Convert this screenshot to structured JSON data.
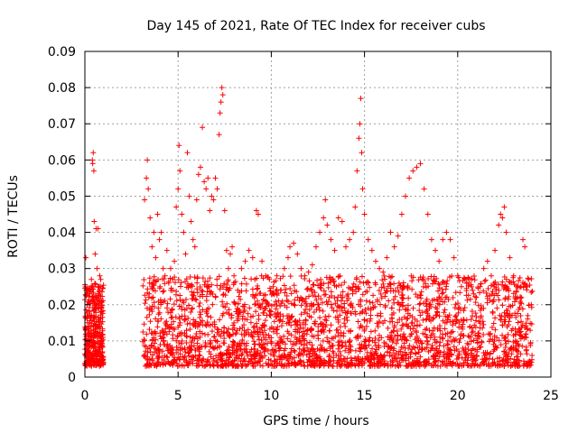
{
  "colors": {
    "series": "#ff0000",
    "grid": "#a0a0a0",
    "frame": "#000000",
    "background": "#ffffff"
  },
  "chart_data": {
    "type": "scatter",
    "title": "Day 145 of 2021, Rate Of TEC Index for receiver cubs",
    "xlabel": "GPS time / hours",
    "ylabel": "ROTI / TECUs",
    "xlim": [
      0,
      25
    ],
    "ylim": [
      0,
      0.09
    ],
    "xticks": [
      0,
      5,
      10,
      15,
      20,
      25
    ],
    "xtick_labels": [
      "0",
      "5",
      "10",
      "15",
      "20",
      "25"
    ],
    "yticks": [
      0,
      0.01,
      0.02,
      0.03,
      0.04,
      0.05,
      0.06,
      0.07,
      0.08,
      0.09
    ],
    "ytick_labels": [
      "0",
      "0.01",
      "0.02",
      "0.03",
      "0.04",
      "0.05",
      "0.06",
      "0.07",
      "0.08",
      "0.09"
    ],
    "grid": true,
    "marker": "plus",
    "series": [
      {
        "color": "#ff0000",
        "points": [
          [
            0.05,
            0.033
          ],
          [
            0.1,
            0.024
          ],
          [
            0.15,
            0.012
          ],
          [
            0.2,
            0.008
          ],
          [
            0.25,
            0.015
          ],
          [
            0.3,
            0.021
          ],
          [
            0.35,
            0.027
          ],
          [
            0.4,
            0.06
          ],
          [
            0.42,
            0.059
          ],
          [
            0.45,
            0.062
          ],
          [
            0.48,
            0.057
          ],
          [
            0.5,
            0.043
          ],
          [
            0.55,
            0.034
          ],
          [
            0.6,
            0.041
          ],
          [
            0.65,
            0.03
          ],
          [
            0.7,
            0.041
          ],
          [
            0.75,
            0.025
          ],
          [
            0.8,
            0.028
          ],
          [
            0.85,
            0.027
          ],
          [
            0.9,
            0.018
          ],
          [
            0.2,
            0.006
          ],
          [
            0.4,
            0.005
          ],
          [
            0.6,
            0.007
          ],
          [
            0.8,
            0.009
          ],
          [
            3.2,
            0.049
          ],
          [
            3.3,
            0.055
          ],
          [
            3.35,
            0.06
          ],
          [
            3.4,
            0.052
          ],
          [
            3.5,
            0.044
          ],
          [
            3.6,
            0.036
          ],
          [
            3.7,
            0.04
          ],
          [
            3.8,
            0.033
          ],
          [
            3.9,
            0.045
          ],
          [
            4.0,
            0.038
          ],
          [
            4.1,
            0.04
          ],
          [
            4.2,
            0.03
          ],
          [
            4.3,
            0.028
          ],
          [
            4.4,
            0.035
          ],
          [
            4.5,
            0.026
          ],
          [
            4.6,
            0.03
          ],
          [
            4.7,
            0.024
          ],
          [
            4.8,
            0.032
          ],
          [
            4.9,
            0.047
          ],
          [
            5.0,
            0.052
          ],
          [
            5.05,
            0.064
          ],
          [
            5.1,
            0.057
          ],
          [
            5.2,
            0.045
          ],
          [
            5.3,
            0.04
          ],
          [
            5.4,
            0.034
          ],
          [
            5.5,
            0.062
          ],
          [
            5.6,
            0.05
          ],
          [
            5.7,
            0.043
          ],
          [
            5.8,
            0.038
          ],
          [
            5.9,
            0.036
          ],
          [
            6.0,
            0.049
          ],
          [
            6.1,
            0.056
          ],
          [
            6.2,
            0.058
          ],
          [
            6.3,
            0.069
          ],
          [
            6.4,
            0.054
          ],
          [
            6.5,
            0.052
          ],
          [
            6.6,
            0.055
          ],
          [
            6.7,
            0.046
          ],
          [
            6.8,
            0.05
          ],
          [
            6.9,
            0.049
          ],
          [
            7.0,
            0.055
          ],
          [
            7.1,
            0.052
          ],
          [
            7.2,
            0.067
          ],
          [
            7.25,
            0.073
          ],
          [
            7.3,
            0.076
          ],
          [
            7.35,
            0.08
          ],
          [
            7.4,
            0.078
          ],
          [
            7.5,
            0.046
          ],
          [
            7.6,
            0.035
          ],
          [
            7.7,
            0.03
          ],
          [
            7.8,
            0.034
          ],
          [
            7.9,
            0.036
          ],
          [
            8.0,
            0.028
          ],
          [
            8.2,
            0.024
          ],
          [
            8.4,
            0.03
          ],
          [
            8.6,
            0.032
          ],
          [
            8.8,
            0.035
          ],
          [
            9.0,
            0.033
          ],
          [
            9.2,
            0.046
          ],
          [
            9.3,
            0.045
          ],
          [
            9.5,
            0.032
          ],
          [
            9.7,
            0.028
          ],
          [
            9.9,
            0.027
          ],
          [
            10.1,
            0.025
          ],
          [
            10.3,
            0.028
          ],
          [
            10.5,
            0.024
          ],
          [
            10.7,
            0.03
          ],
          [
            10.9,
            0.033
          ],
          [
            11.0,
            0.036
          ],
          [
            11.2,
            0.037
          ],
          [
            11.4,
            0.034
          ],
          [
            11.6,
            0.03
          ],
          [
            11.8,
            0.028
          ],
          [
            12.0,
            0.029
          ],
          [
            12.2,
            0.031
          ],
          [
            12.4,
            0.036
          ],
          [
            12.6,
            0.04
          ],
          [
            12.8,
            0.044
          ],
          [
            12.9,
            0.049
          ],
          [
            13.0,
            0.042
          ],
          [
            13.2,
            0.038
          ],
          [
            13.4,
            0.035
          ],
          [
            13.6,
            0.044
          ],
          [
            13.8,
            0.043
          ],
          [
            14.0,
            0.036
          ],
          [
            14.2,
            0.038
          ],
          [
            14.4,
            0.04
          ],
          [
            14.5,
            0.047
          ],
          [
            14.6,
            0.057
          ],
          [
            14.7,
            0.066
          ],
          [
            14.75,
            0.07
          ],
          [
            14.8,
            0.077
          ],
          [
            14.85,
            0.062
          ],
          [
            14.9,
            0.052
          ],
          [
            15.0,
            0.045
          ],
          [
            15.2,
            0.038
          ],
          [
            15.4,
            0.035
          ],
          [
            15.6,
            0.032
          ],
          [
            15.8,
            0.03
          ],
          [
            16.0,
            0.029
          ],
          [
            16.2,
            0.033
          ],
          [
            16.4,
            0.04
          ],
          [
            16.6,
            0.036
          ],
          [
            16.8,
            0.039
          ],
          [
            17.0,
            0.045
          ],
          [
            17.2,
            0.05
          ],
          [
            17.4,
            0.055
          ],
          [
            17.6,
            0.057
          ],
          [
            17.8,
            0.058
          ],
          [
            18.0,
            0.059
          ],
          [
            18.2,
            0.052
          ],
          [
            18.4,
            0.045
          ],
          [
            18.6,
            0.038
          ],
          [
            18.8,
            0.035
          ],
          [
            19.0,
            0.032
          ],
          [
            19.2,
            0.038
          ],
          [
            19.4,
            0.04
          ],
          [
            19.6,
            0.038
          ],
          [
            19.8,
            0.033
          ],
          [
            20.0,
            0.028
          ],
          [
            20.2,
            0.025
          ],
          [
            20.4,
            0.027
          ],
          [
            20.6,
            0.026
          ],
          [
            20.8,
            0.024
          ],
          [
            21.0,
            0.022
          ],
          [
            21.2,
            0.025
          ],
          [
            21.4,
            0.03
          ],
          [
            21.6,
            0.032
          ],
          [
            21.8,
            0.028
          ],
          [
            22.0,
            0.035
          ],
          [
            22.2,
            0.042
          ],
          [
            22.3,
            0.045
          ],
          [
            22.4,
            0.044
          ],
          [
            22.5,
            0.047
          ],
          [
            22.6,
            0.04
          ],
          [
            22.8,
            0.033
          ],
          [
            23.0,
            0.028
          ],
          [
            23.2,
            0.022
          ],
          [
            23.4,
            0.025
          ],
          [
            23.5,
            0.038
          ],
          [
            23.6,
            0.036
          ],
          [
            23.8,
            0.027
          ],
          [
            23.95,
            0.02
          ]
        ]
      }
    ]
  }
}
